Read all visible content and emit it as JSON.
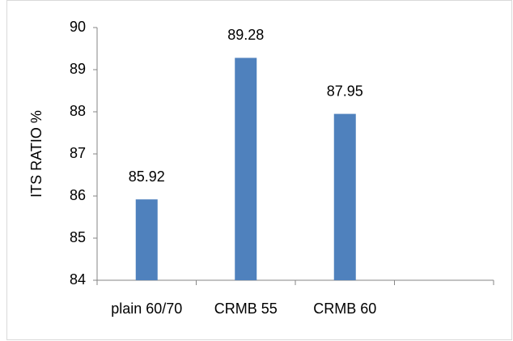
{
  "chart_data": {
    "type": "bar",
    "y_label": "ITS  RATIO %",
    "categories": [
      "plain 60/70",
      "CRMB 55",
      "CRMB 60",
      null
    ],
    "values": [
      85.92,
      89.28,
      87.95,
      null
    ],
    "color": "#4f81bd",
    "ylim": [
      84,
      90
    ],
    "yticks": [
      84,
      85,
      86,
      87,
      88,
      89,
      90
    ],
    "grid": false
  }
}
